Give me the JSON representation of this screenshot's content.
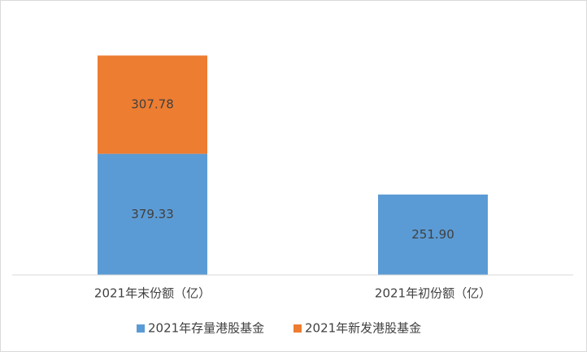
{
  "chart_data": {
    "type": "stacked-bar",
    "categories": [
      "2021年末份额（亿）",
      "2021年初份额（亿）"
    ],
    "series": [
      {
        "name": "2021年存量港股基金",
        "color": "#5b9bd5",
        "values": [
          379.33,
          251.9
        ],
        "value_labels": [
          "379.33",
          "251.90"
        ]
      },
      {
        "name": "2021年新发港股基金",
        "color": "#ed7d31",
        "values": [
          307.78,
          null
        ]
      }
    ],
    "ylim": [
      0,
      800
    ],
    "legend": "bottom"
  }
}
